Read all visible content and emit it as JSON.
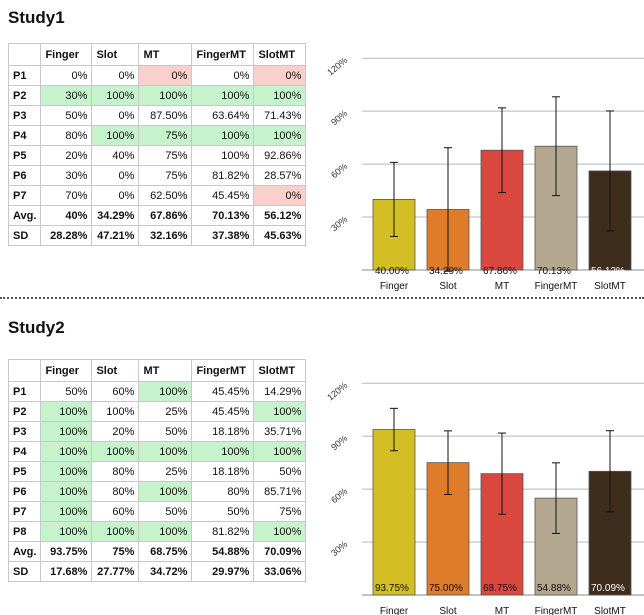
{
  "studies": [
    {
      "title": "Study1",
      "columns": [
        "",
        "Finger",
        "Slot",
        "MT",
        "FingerMT",
        "SlotMT"
      ],
      "rows": [
        {
          "label": "P1",
          "cells": [
            {
              "v": "0%",
              "c": ""
            },
            {
              "v": "0%",
              "c": ""
            },
            {
              "v": "0%",
              "c": "r"
            },
            {
              "v": "0%",
              "c": ""
            },
            {
              "v": "0%",
              "c": "r"
            }
          ]
        },
        {
          "label": "P2",
          "cells": [
            {
              "v": "30%",
              "c": "g"
            },
            {
              "v": "100%",
              "c": "g"
            },
            {
              "v": "100%",
              "c": "g"
            },
            {
              "v": "100%",
              "c": "g"
            },
            {
              "v": "100%",
              "c": "g"
            }
          ]
        },
        {
          "label": "P3",
          "cells": [
            {
              "v": "50%",
              "c": ""
            },
            {
              "v": "0%",
              "c": ""
            },
            {
              "v": "87.50%",
              "c": ""
            },
            {
              "v": "63.64%",
              "c": ""
            },
            {
              "v": "71.43%",
              "c": ""
            }
          ]
        },
        {
          "label": "P4",
          "cells": [
            {
              "v": "80%",
              "c": ""
            },
            {
              "v": "100%",
              "c": "g"
            },
            {
              "v": "75%",
              "c": "g"
            },
            {
              "v": "100%",
              "c": "g"
            },
            {
              "v": "100%",
              "c": "g"
            }
          ]
        },
        {
          "label": "P5",
          "cells": [
            {
              "v": "20%",
              "c": ""
            },
            {
              "v": "40%",
              "c": ""
            },
            {
              "v": "75%",
              "c": ""
            },
            {
              "v": "100%",
              "c": ""
            },
            {
              "v": "92.86%",
              "c": ""
            }
          ]
        },
        {
          "label": "P6",
          "cells": [
            {
              "v": "30%",
              "c": ""
            },
            {
              "v": "0%",
              "c": ""
            },
            {
              "v": "75%",
              "c": ""
            },
            {
              "v": "81.82%",
              "c": ""
            },
            {
              "v": "28.57%",
              "c": ""
            }
          ]
        },
        {
          "label": "P7",
          "cells": [
            {
              "v": "70%",
              "c": ""
            },
            {
              "v": "0%",
              "c": ""
            },
            {
              "v": "62.50%",
              "c": ""
            },
            {
              "v": "45.45%",
              "c": ""
            },
            {
              "v": "0%",
              "c": "r"
            }
          ]
        },
        {
          "label": "Avg.",
          "sum": true,
          "cells": [
            {
              "v": "40%",
              "c": ""
            },
            {
              "v": "34.29%",
              "c": ""
            },
            {
              "v": "67.86%",
              "c": ""
            },
            {
              "v": "70.13%",
              "c": ""
            },
            {
              "v": "56.12%",
              "c": ""
            }
          ]
        },
        {
          "label": "SD",
          "sum": true,
          "cells": [
            {
              "v": "28.28%",
              "c": ""
            },
            {
              "v": "47.21%",
              "c": ""
            },
            {
              "v": "32.16%",
              "c": ""
            },
            {
              "v": "37.38%",
              "c": ""
            },
            {
              "v": "45.63%",
              "c": ""
            }
          ]
        }
      ]
    },
    {
      "title": "Study2",
      "columns": [
        "",
        "Finger",
        "Slot",
        "MT",
        "FingerMT",
        "SlotMT"
      ],
      "rows": [
        {
          "label": "P1",
          "cells": [
            {
              "v": "50%",
              "c": ""
            },
            {
              "v": "60%",
              "c": ""
            },
            {
              "v": "100%",
              "c": "g"
            },
            {
              "v": "45.45%",
              "c": ""
            },
            {
              "v": "14.29%",
              "c": ""
            }
          ]
        },
        {
          "label": "P2",
          "cells": [
            {
              "v": "100%",
              "c": "g"
            },
            {
              "v": "100%",
              "c": ""
            },
            {
              "v": "25%",
              "c": ""
            },
            {
              "v": "45.45%",
              "c": ""
            },
            {
              "v": "100%",
              "c": "g"
            }
          ]
        },
        {
          "label": "P3",
          "cells": [
            {
              "v": "100%",
              "c": "g"
            },
            {
              "v": "20%",
              "c": ""
            },
            {
              "v": "50%",
              "c": ""
            },
            {
              "v": "18.18%",
              "c": ""
            },
            {
              "v": "35.71%",
              "c": ""
            }
          ]
        },
        {
          "label": "P4",
          "cells": [
            {
              "v": "100%",
              "c": "g"
            },
            {
              "v": "100%",
              "c": "g"
            },
            {
              "v": "100%",
              "c": "g"
            },
            {
              "v": "100%",
              "c": "g"
            },
            {
              "v": "100%",
              "c": "g"
            }
          ]
        },
        {
          "label": "P5",
          "cells": [
            {
              "v": "100%",
              "c": "g"
            },
            {
              "v": "80%",
              "c": ""
            },
            {
              "v": "25%",
              "c": ""
            },
            {
              "v": "18.18%",
              "c": ""
            },
            {
              "v": "50%",
              "c": ""
            }
          ]
        },
        {
          "label": "P6",
          "cells": [
            {
              "v": "100%",
              "c": "g"
            },
            {
              "v": "80%",
              "c": ""
            },
            {
              "v": "100%",
              "c": "g"
            },
            {
              "v": "80%",
              "c": ""
            },
            {
              "v": "85.71%",
              "c": ""
            }
          ]
        },
        {
          "label": "P7",
          "cells": [
            {
              "v": "100%",
              "c": "g"
            },
            {
              "v": "60%",
              "c": ""
            },
            {
              "v": "50%",
              "c": ""
            },
            {
              "v": "50%",
              "c": ""
            },
            {
              "v": "75%",
              "c": ""
            }
          ]
        },
        {
          "label": "P8",
          "cells": [
            {
              "v": "100%",
              "c": "g"
            },
            {
              "v": "100%",
              "c": "g"
            },
            {
              "v": "100%",
              "c": "g"
            },
            {
              "v": "81.82%",
              "c": ""
            },
            {
              "v": "100%",
              "c": "g"
            }
          ]
        },
        {
          "label": "Avg.",
          "sum": true,
          "cells": [
            {
              "v": "93.75%",
              "c": ""
            },
            {
              "v": "75%",
              "c": ""
            },
            {
              "v": "68.75%",
              "c": ""
            },
            {
              "v": "54.88%",
              "c": ""
            },
            {
              "v": "70.09%",
              "c": ""
            }
          ]
        },
        {
          "label": "SD",
          "sum": true,
          "cells": [
            {
              "v": "17.68%",
              "c": ""
            },
            {
              "v": "27.77%",
              "c": ""
            },
            {
              "v": "34.72%",
              "c": ""
            },
            {
              "v": "29.97%",
              "c": ""
            },
            {
              "v": "33.06%",
              "c": ""
            }
          ]
        }
      ]
    }
  ],
  "chart_data": [
    {
      "type": "bar",
      "categories": [
        "Finger",
        "Slot",
        "MT",
        "FingerMT",
        "SlotMT"
      ],
      "values": [
        40.0,
        34.29,
        67.86,
        70.13,
        56.12
      ],
      "errors": [
        21,
        35,
        24,
        28,
        34
      ],
      "data_labels": [
        "40.00%",
        "34.29%",
        "67.86%",
        "70.13%",
        "56.12%"
      ],
      "colors": [
        "#d4be26",
        "#e07b2a",
        "#d9473e",
        "#b3a88f",
        "#3e2d1c"
      ],
      "label_colors": [
        "#111111",
        "#111111",
        "#111111",
        "#111111",
        "#ffffff"
      ],
      "yticks": [
        "30%",
        "60%",
        "90%",
        "120%"
      ],
      "ytick_values": [
        30,
        60,
        90,
        120
      ],
      "ylim": [
        0,
        120
      ],
      "grid": true
    },
    {
      "type": "bar",
      "categories": [
        "Finger",
        "Slot",
        "MT",
        "FingerMT",
        "SlotMT"
      ],
      "values": [
        93.75,
        75.0,
        68.75,
        54.88,
        70.09
      ],
      "errors": [
        12,
        18,
        23,
        20,
        23
      ],
      "data_labels": [
        "93.75%",
        "75.00%",
        "68.75%",
        "54.88%",
        "70.09%"
      ],
      "colors": [
        "#d4be26",
        "#e07b2a",
        "#d9473e",
        "#b3a88f",
        "#3e2d1c"
      ],
      "label_colors": [
        "#111111",
        "#111111",
        "#111111",
        "#111111",
        "#ffffff"
      ],
      "yticks": [
        "30%",
        "60%",
        "90%",
        "120%"
      ],
      "ytick_values": [
        30,
        60,
        90,
        120
      ],
      "ylim": [
        0,
        120
      ],
      "grid": true
    }
  ]
}
